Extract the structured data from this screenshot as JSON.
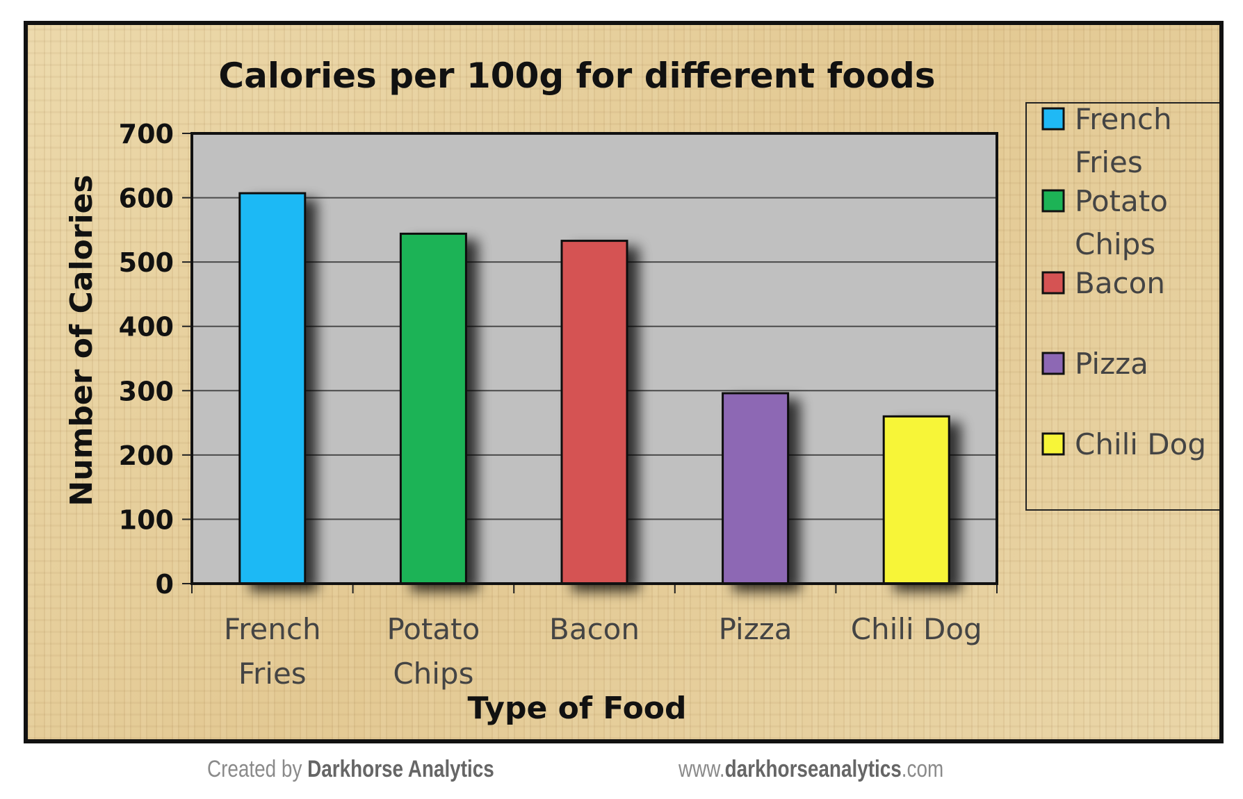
{
  "chart_data": {
    "type": "bar",
    "title": "Calories per 100g for different foods",
    "xlabel": "Type of Food",
    "ylabel": "Number of Calories",
    "categories": [
      "French Fries",
      "Potato Chips",
      "Bacon",
      "Pizza",
      "Chili Dog"
    ],
    "category_lines": [
      [
        "French",
        "Fries"
      ],
      [
        "Potato",
        "Chips"
      ],
      [
        "Bacon"
      ],
      [
        "Pizza"
      ],
      [
        "Chili Dog"
      ]
    ],
    "values": [
      607,
      544,
      533,
      296,
      260
    ],
    "ylim": [
      0,
      700
    ],
    "yticks": [
      "0",
      "100",
      "200",
      "300",
      "400",
      "500",
      "600",
      "700"
    ],
    "grid": true,
    "legend_position": "right",
    "legend": [
      {
        "lines": [
          "French",
          "Fries"
        ]
      },
      {
        "lines": [
          "Potato",
          "Chips"
        ]
      },
      {
        "lines": [
          "Bacon"
        ]
      },
      {
        "lines": [
          "Pizza"
        ]
      },
      {
        "lines": [
          "Chili Dog"
        ]
      }
    ],
    "colors": [
      "#1fb9f5",
      "#1db356",
      "#d55353",
      "#8d68b4",
      "#f7f538"
    ],
    "plot_background": "#c0c0c0"
  },
  "footer": {
    "created_by_prefix": "Created by",
    "created_by_name": "Darkhorse Analytics",
    "url_prefix": "www.",
    "url_name": "darkhorseanalytics",
    "url_suffix": ".com"
  }
}
